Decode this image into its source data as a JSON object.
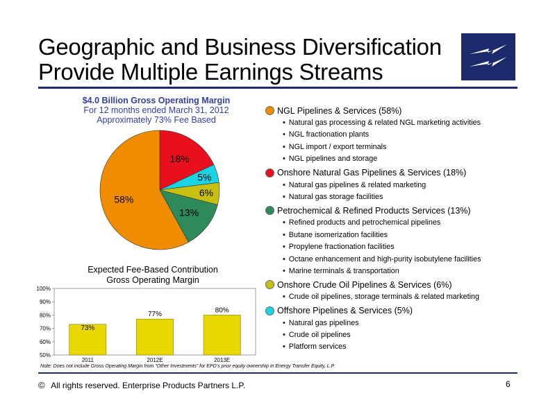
{
  "title": {
    "line1": "Geographic and Business Diversification",
    "line2": "Provide Multiple Earnings Streams"
  },
  "logo": {
    "icon": "lightning-bolt-logo-icon",
    "color": "#1c2a6b"
  },
  "pie_caption": {
    "line1": "$4.0 Billion Gross Operating Margin",
    "line2": "For 12 months ended March 31, 2012",
    "line3": "Approximately 73% Fee Based"
  },
  "bar_caption": {
    "line1": "Expected Fee-Based Contribution",
    "line2": "Gross Operating Margin"
  },
  "chart_data": [
    {
      "type": "pie",
      "title": "$4.0 Billion Gross Operating Margin For 12 months ended March 31, 2012 Approximately 73% Fee Based",
      "slices": [
        {
          "label": "18%",
          "value": 18,
          "color": "#e8101c"
        },
        {
          "label": "5%",
          "value": 5,
          "color": "#18d4e4"
        },
        {
          "label": "6%",
          "value": 6,
          "color": "#c8c010"
        },
        {
          "label": "13%",
          "value": 13,
          "color": "#2e8a5a"
        },
        {
          "label": "58%",
          "value": 58,
          "color": "#f08c00"
        }
      ],
      "start_angle_deg": 0,
      "direction": "clockwise"
    },
    {
      "type": "bar",
      "title": "Expected Fee-Based Contribution Gross Operating Margin",
      "categories": [
        "2011",
        "2012E",
        "2013E"
      ],
      "values": [
        73,
        77,
        80
      ],
      "value_labels": [
        "73%",
        "77%",
        "80%"
      ],
      "ylim": [
        50,
        100
      ],
      "yticks": [
        50,
        60,
        70,
        80,
        90,
        100
      ],
      "ytick_labels": [
        "50%",
        "60%",
        "70%",
        "80%",
        "90%",
        "100%"
      ],
      "bar_color": "#e8d800",
      "grid": false
    }
  ],
  "legend": [
    {
      "heading": "NGL Pipelines & Services (58%)",
      "color": "#f08c00",
      "bullets": [
        "Natural gas processing & related NGL marketing activities",
        "NGL fractionation plants",
        "NGL import / export terminals",
        "NGL pipelines and storage"
      ]
    },
    {
      "heading": "Onshore Natural Gas Pipelines & Services (18%)",
      "color": "#e8101c",
      "bullets": [
        "Natural gas pipelines & related marketing",
        "Natural gas storage facilities"
      ]
    },
    {
      "heading": "Petrochemical & Refined Products Services (13%)",
      "color": "#2e8a5a",
      "bullets": [
        "Refined products and petrochemical pipelines",
        "Butane isomerization facilities",
        "Propylene fractionation facilities",
        "Octane enhancement and high-purity isobutylene facilities",
        "Marine terminals & transportation"
      ]
    },
    {
      "heading": "Onshore Crude Oil Pipelines & Services (6%)",
      "color": "#c8c010",
      "bullets": [
        "Crude oil pipelines, storage terminals & related marketing"
      ]
    },
    {
      "heading": "Offshore Pipelines & Services (5%)",
      "color": "#18d4e4",
      "bullets": [
        "Natural gas pipelines",
        "Crude oil pipelines",
        "Platform services"
      ]
    }
  ],
  "note": "Note:  Does not include Gross Operating Margin from “Other Investments” for EPD’s prior equity ownership in Energy Transfer Equity, L.P.",
  "footer": {
    "copyright_symbol": "©",
    "text": "All rights reserved. Enterprise Products Partners L.P.",
    "page_number": "6"
  }
}
